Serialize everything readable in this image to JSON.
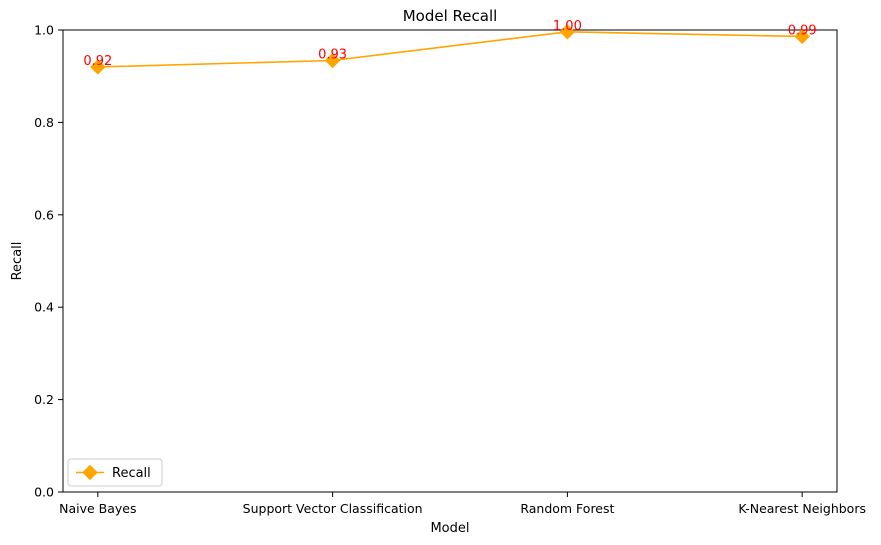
{
  "chart_data": {
    "type": "line",
    "title": "Model Recall",
    "xlabel": "Model",
    "ylabel": "Recall",
    "categories": [
      "Naive Bayes",
      "Support Vector Classification",
      "Random Forest",
      "K-Nearest Neighbors"
    ],
    "series": [
      {
        "name": "Recall",
        "values": [
          0.92,
          0.934,
          0.996,
          0.986
        ],
        "data_labels": [
          "0.92",
          "0.93",
          "1.00",
          "0.99"
        ],
        "color": "#FFA500",
        "marker": "diamond"
      }
    ],
    "ylim": [
      0,
      1.0
    ],
    "yticks": [
      "0.0",
      "0.2",
      "0.4",
      "0.6",
      "0.8",
      "1.0"
    ],
    "grid": false,
    "legend": {
      "position": "lower-left",
      "entries": [
        "Recall"
      ]
    },
    "data_label_color": "#FF0000"
  }
}
